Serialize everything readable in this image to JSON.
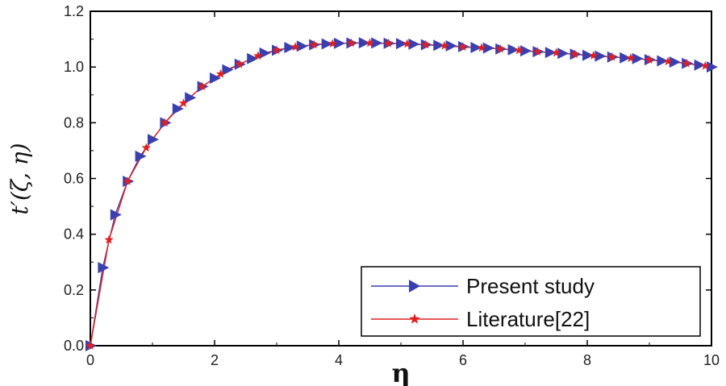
{
  "chart_data": {
    "type": "line",
    "xlabel": "η",
    "ylabel": "t′(ζ, η)",
    "xlim": [
      0,
      10
    ],
    "ylim": [
      0,
      1.2
    ],
    "xticks": [
      0,
      2,
      4,
      6,
      8,
      10
    ],
    "yticks": [
      0.0,
      0.2,
      0.4,
      0.6,
      0.8,
      1.0,
      1.2
    ],
    "xtick_labels": [
      "0",
      "2",
      "4",
      "6",
      "8",
      "10"
    ],
    "ytick_labels": [
      "0.0",
      "0.2",
      "0.4",
      "0.6",
      "0.8",
      "1.0",
      "1.2"
    ],
    "grid": false,
    "legend_position": "bottom-right",
    "series": [
      {
        "name": "Present study",
        "color": "#3a3fb0",
        "marker": "triangle-right",
        "x": [
          0,
          0.2,
          0.4,
          0.6,
          0.8,
          1.0,
          1.2,
          1.4,
          1.6,
          1.8,
          2.0,
          2.2,
          2.4,
          2.6,
          2.8,
          3.0,
          3.2,
          3.4,
          3.6,
          3.8,
          4.0,
          4.2,
          4.4,
          4.6,
          4.8,
          5.0,
          5.2,
          5.4,
          5.6,
          5.8,
          6.0,
          6.2,
          6.4,
          6.6,
          6.8,
          7.0,
          7.2,
          7.4,
          7.6,
          7.8,
          8.0,
          8.2,
          8.4,
          8.6,
          8.8,
          9.0,
          9.2,
          9.4,
          9.6,
          9.8,
          10.0
        ],
        "y": [
          0.0,
          0.28,
          0.47,
          0.59,
          0.68,
          0.74,
          0.8,
          0.85,
          0.89,
          0.93,
          0.96,
          0.99,
          1.01,
          1.03,
          1.05,
          1.06,
          1.07,
          1.075,
          1.08,
          1.083,
          1.085,
          1.086,
          1.087,
          1.086,
          1.085,
          1.084,
          1.082,
          1.08,
          1.078,
          1.076,
          1.073,
          1.07,
          1.068,
          1.065,
          1.062,
          1.058,
          1.055,
          1.052,
          1.049,
          1.046,
          1.042,
          1.039,
          1.036,
          1.033,
          1.03,
          1.026,
          1.022,
          1.018,
          1.013,
          1.007,
          1.0
        ]
      },
      {
        "name": "Literature[22]",
        "color": "#e02020",
        "marker": "star",
        "x": [
          0,
          0.3,
          0.6,
          0.9,
          1.2,
          1.5,
          1.8,
          2.1,
          2.4,
          2.7,
          3.0,
          3.3,
          3.6,
          3.9,
          4.2,
          4.5,
          4.8,
          5.1,
          5.4,
          5.7,
          6.0,
          6.3,
          6.6,
          6.9,
          7.2,
          7.5,
          7.8,
          8.1,
          8.4,
          8.7,
          9.0,
          9.3,
          9.6,
          9.9
        ],
        "y": [
          0.0,
          0.38,
          0.59,
          0.71,
          0.8,
          0.87,
          0.93,
          0.975,
          1.01,
          1.04,
          1.06,
          1.072,
          1.08,
          1.084,
          1.086,
          1.086,
          1.085,
          1.083,
          1.08,
          1.076,
          1.072,
          1.069,
          1.065,
          1.06,
          1.055,
          1.051,
          1.046,
          1.041,
          1.036,
          1.032,
          1.026,
          1.02,
          1.013,
          1.004
        ]
      }
    ]
  }
}
